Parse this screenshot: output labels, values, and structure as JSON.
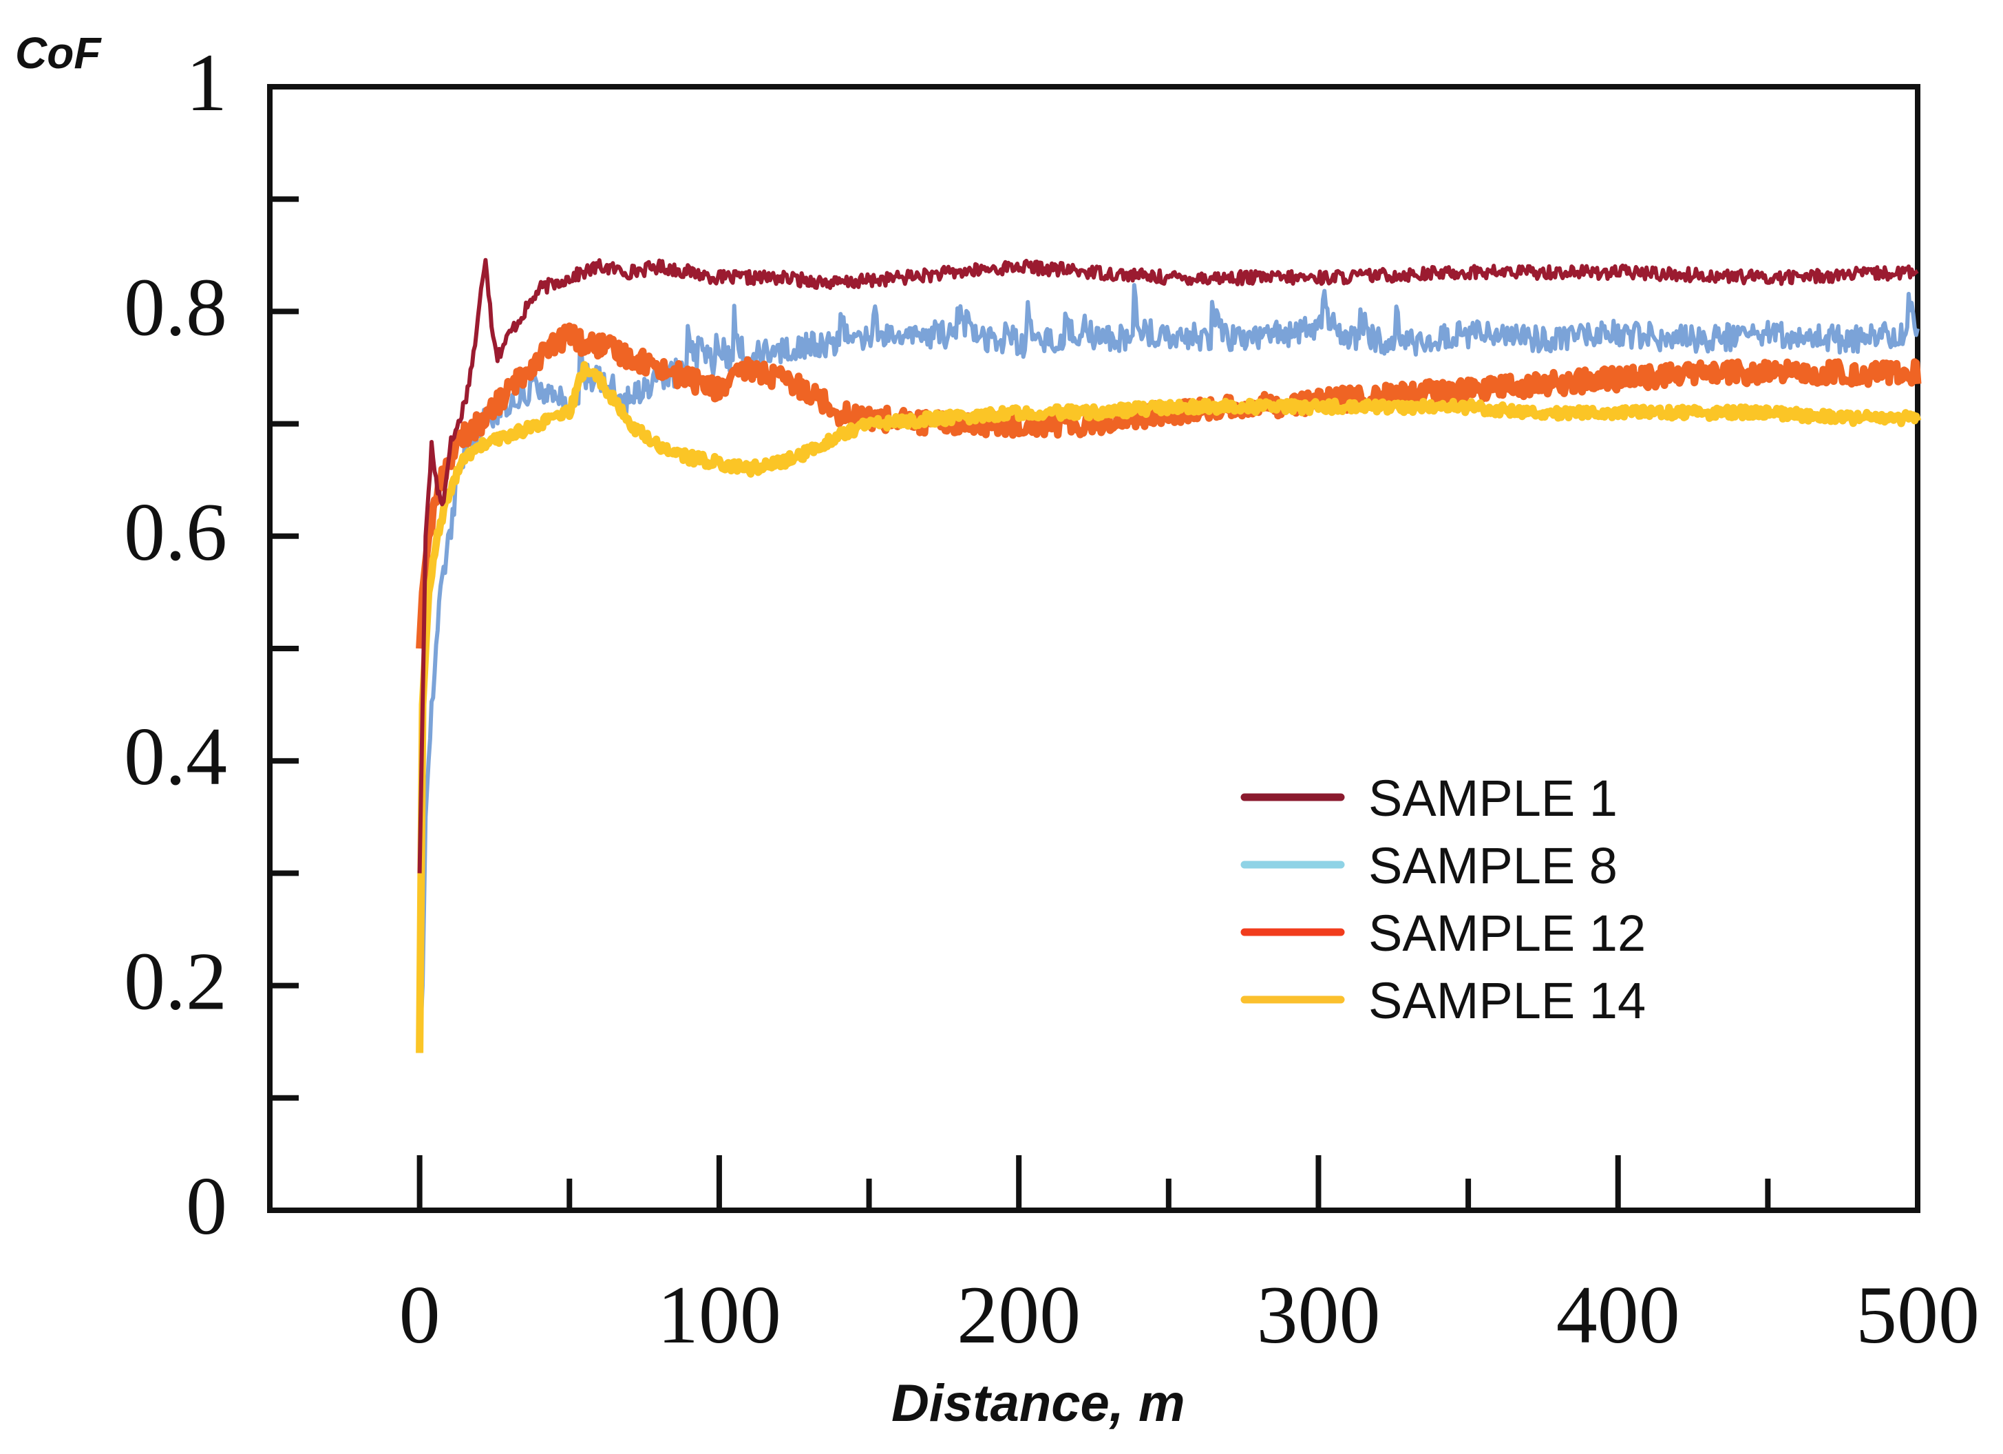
{
  "chart_data": {
    "type": "line",
    "title": "",
    "xlabel": "Distance, m",
    "ylabel": "CoF",
    "xlim": [
      -50,
      500
    ],
    "ylim": [
      0,
      1
    ],
    "grid": false,
    "legend_position": "lower-right",
    "x_ticks": [
      0,
      100,
      200,
      300,
      400,
      500
    ],
    "x_tick_labels": [
      "0",
      "100",
      "200",
      "300",
      "400",
      "500"
    ],
    "x_minor_ticks": [
      50,
      150,
      250,
      350,
      450
    ],
    "y_ticks": [
      0,
      0.2,
      0.4,
      0.6,
      0.8,
      1
    ],
    "y_tick_labels": [
      "0",
      "0.2",
      "0.4",
      "0.6",
      "0.8",
      "1"
    ],
    "y_minor_ticks": [
      0.1,
      0.3,
      0.5,
      0.7,
      0.9
    ],
    "series": [
      {
        "name": "SAMPLE 1",
        "color": "#9b1b30",
        "legend_color": "#8b1a2e",
        "x": [
          0,
          1,
          2,
          4,
          6,
          8,
          10,
          13,
          16,
          19,
          21,
          22,
          24,
          26,
          30,
          35,
          40,
          50,
          60,
          70,
          80,
          100,
          120,
          140,
          160,
          180,
          200,
          250,
          300,
          350,
          400,
          450,
          500
        ],
        "y": [
          0.3,
          0.45,
          0.6,
          0.68,
          0.64,
          0.63,
          0.68,
          0.7,
          0.73,
          0.78,
          0.83,
          0.85,
          0.79,
          0.76,
          0.78,
          0.8,
          0.82,
          0.83,
          0.84,
          0.835,
          0.84,
          0.83,
          0.83,
          0.825,
          0.83,
          0.835,
          0.84,
          0.83,
          0.83,
          0.835,
          0.835,
          0.83,
          0.835
        ]
      },
      {
        "name": "SAMPLE 8",
        "color": "#7ba3d8",
        "legend_color": "#8fd3e6",
        "x": [
          0,
          1,
          2,
          4,
          6,
          8,
          10,
          12,
          15,
          20,
          30,
          40,
          50,
          60,
          70,
          80,
          90,
          100,
          110,
          120,
          130,
          140,
          150,
          175,
          200,
          225,
          250,
          275,
          300,
          325,
          350,
          375,
          400,
          425,
          450,
          475,
          500
        ],
        "y": [
          0.14,
          0.2,
          0.35,
          0.45,
          0.52,
          0.57,
          0.6,
          0.64,
          0.67,
          0.7,
          0.72,
          0.73,
          0.72,
          0.74,
          0.72,
          0.74,
          0.75,
          0.755,
          0.76,
          0.765,
          0.77,
          0.77,
          0.775,
          0.78,
          0.77,
          0.775,
          0.78,
          0.775,
          0.785,
          0.77,
          0.78,
          0.775,
          0.78,
          0.775,
          0.78,
          0.775,
          0.78
        ]
      },
      {
        "name": "SAMPLE 12",
        "color": "#ef6424",
        "legend_color": "#f13c1c",
        "x": [
          0,
          1,
          3,
          6,
          10,
          15,
          20,
          30,
          40,
          50,
          55,
          60,
          70,
          80,
          90,
          100,
          110,
          120,
          130,
          135,
          140,
          150,
          175,
          200,
          225,
          250,
          275,
          300,
          325,
          350,
          375,
          400,
          425,
          450,
          475,
          500
        ],
        "y": [
          0.5,
          0.55,
          0.6,
          0.64,
          0.67,
          0.69,
          0.7,
          0.73,
          0.76,
          0.78,
          0.77,
          0.77,
          0.76,
          0.75,
          0.74,
          0.73,
          0.75,
          0.74,
          0.73,
          0.72,
          0.71,
          0.705,
          0.7,
          0.7,
          0.7,
          0.71,
          0.715,
          0.72,
          0.725,
          0.73,
          0.735,
          0.74,
          0.745,
          0.745,
          0.745,
          0.745
        ]
      },
      {
        "name": "SAMPLE 14",
        "color": "#fbc526",
        "legend_color": "#fbc02d",
        "x": [
          0,
          1,
          3,
          6,
          10,
          15,
          20,
          30,
          40,
          50,
          55,
          60,
          65,
          70,
          80,
          90,
          100,
          110,
          120,
          130,
          140,
          150,
          175,
          200,
          225,
          250,
          275,
          300,
          325,
          350,
          375,
          400,
          425,
          450,
          475,
          500
        ],
        "y": [
          0.14,
          0.45,
          0.55,
          0.6,
          0.64,
          0.67,
          0.68,
          0.69,
          0.7,
          0.71,
          0.75,
          0.74,
          0.72,
          0.7,
          0.68,
          0.67,
          0.665,
          0.66,
          0.665,
          0.675,
          0.69,
          0.7,
          0.705,
          0.71,
          0.71,
          0.715,
          0.715,
          0.715,
          0.715,
          0.715,
          0.71,
          0.71,
          0.71,
          0.71,
          0.705,
          0.705
        ]
      }
    ]
  }
}
